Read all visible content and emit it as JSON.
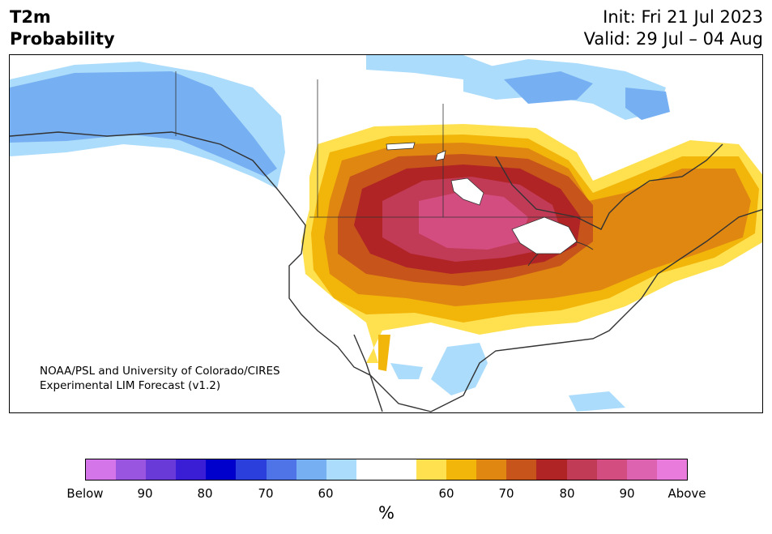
{
  "header": {
    "title_line1": "T2m",
    "title_line2": "Probability",
    "init": "Init: Fri 21 Jul 2023",
    "valid": "Valid: 29 Jul – 04 Aug"
  },
  "credit": {
    "line1": "NOAA/PSL and University of Colorado/CIRES",
    "line2": "Experimental LIM Forecast (v1.2)"
  },
  "colorbar": {
    "colors": [
      "#d575ea",
      "#9a55e0",
      "#6a3ad9",
      "#3a1ed6",
      "#0000cc",
      "#2b3fdc",
      "#4f74e8",
      "#76b0f2",
      "#acdcfb",
      "#ffffff",
      "#ffffff",
      "#ffe14f",
      "#f2b50a",
      "#e08711",
      "#c6541b",
      "#b02425",
      "#c13a56",
      "#d34d80",
      "#dd62af",
      "#e97bdc"
    ],
    "tick_labels": [
      "Below",
      "90",
      "80",
      "70",
      "60",
      "60",
      "70",
      "80",
      "90",
      "Above"
    ],
    "unit": "%"
  }
}
